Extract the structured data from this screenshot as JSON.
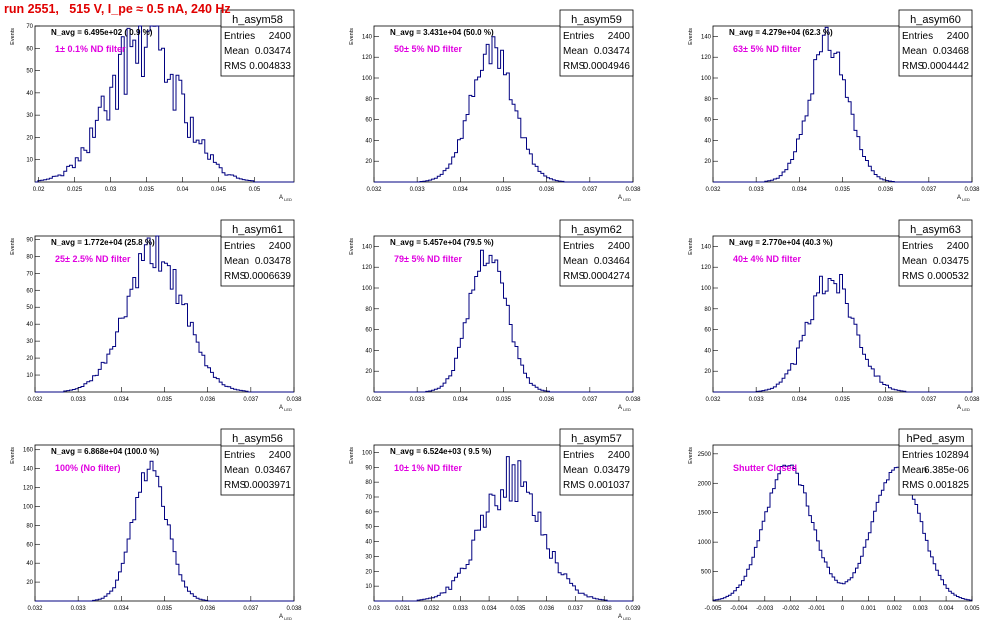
{
  "run_title": "run 2551,   515 V, I_pe ≈ 0.5 nA, 240 Hz",
  "colors": {
    "title": "#e00000",
    "hist": "#000080",
    "annot": "#e000e0"
  },
  "chart_data": [
    {
      "type": "histogram",
      "name": "h_asym58",
      "navg": "N_avg = 6.495e+02 ( 0.9 %)",
      "filter": "1± 0.1% ND filter",
      "stats": {
        "Entries": "2400",
        "Mean": "0.03474",
        "RMS": "0.004833"
      },
      "xlim": [
        0.0195,
        0.0555
      ],
      "ylim": [
        0,
        70
      ],
      "xticks": [
        "0.02",
        "0.025",
        "0.03",
        "0.035",
        "0.04",
        "0.045",
        "0.05"
      ],
      "yticks": [
        "10",
        "20",
        "30",
        "40",
        "50",
        "60",
        "70"
      ],
      "ylabel": "Events",
      "xlabel": "A_LED",
      "mu": 0.03474,
      "sigma": 0.004833,
      "peak": 63,
      "noise": 0.3,
      "seed": 58
    },
    {
      "type": "histogram",
      "name": "h_asym59",
      "navg": "N_avg = 3.431e+04 (50.0 %)",
      "filter": "50± 5% ND filter",
      "stats": {
        "Entries": "2400",
        "Mean": "0.03474",
        "RMS": "0.0004946"
      },
      "xlim": [
        0.032,
        0.038
      ],
      "ylim": [
        0,
        150
      ],
      "xticks": [
        "0.032",
        "0.033",
        "0.034",
        "0.035",
        "0.036",
        "0.037",
        "0.038"
      ],
      "yticks": [
        "20",
        "40",
        "60",
        "80",
        "100",
        "120",
        "140"
      ],
      "ylabel": "Events",
      "xlabel": "A_LED",
      "mu": 0.03474,
      "sigma": 0.0004946,
      "peak": 128,
      "noise": 0.12,
      "seed": 59
    },
    {
      "type": "histogram",
      "name": "h_asym60",
      "navg": "N_avg = 4.279e+04 (62.3 %)",
      "filter": "63± 5% ND filter",
      "stats": {
        "Entries": "2400",
        "Mean": "0.03468",
        "RMS": "0.0004442"
      },
      "xlim": [
        0.032,
        0.038
      ],
      "ylim": [
        0,
        150
      ],
      "xticks": [
        "0.032",
        "0.033",
        "0.034",
        "0.035",
        "0.036",
        "0.037",
        "0.038"
      ],
      "yticks": [
        "20",
        "40",
        "60",
        "80",
        "100",
        "120",
        "140"
      ],
      "ylabel": "Events",
      "xlabel": "A_LED",
      "mu": 0.03468,
      "sigma": 0.0004442,
      "peak": 138,
      "noise": 0.12,
      "seed": 60
    },
    {
      "type": "histogram",
      "name": "h_asym61",
      "navg": "N_avg = 1.772e+04 (25.8 %)",
      "filter": "25± 2.5% ND filter",
      "stats": {
        "Entries": "2400",
        "Mean": "0.03478",
        "RMS": "0.0006639"
      },
      "xlim": [
        0.032,
        0.038
      ],
      "ylim": [
        0,
        92
      ],
      "xticks": [
        "0.032",
        "0.033",
        "0.034",
        "0.035",
        "0.036",
        "0.037",
        "0.038"
      ],
      "yticks": [
        "10",
        "20",
        "30",
        "40",
        "50",
        "60",
        "70",
        "80",
        "90"
      ],
      "ylabel": "Events",
      "xlabel": "A_LED",
      "mu": 0.03478,
      "sigma": 0.0006639,
      "peak": 82,
      "noise": 0.15,
      "seed": 61
    },
    {
      "type": "histogram",
      "name": "h_asym62",
      "navg": "N_avg = 5.457e+04 (79.5 %)",
      "filter": "79± 5% ND filter",
      "stats": {
        "Entries": "2400",
        "Mean": "0.03464",
        "RMS": "0.0004274"
      },
      "xlim": [
        0.032,
        0.038
      ],
      "ylim": [
        0,
        150
      ],
      "xticks": [
        "0.032",
        "0.033",
        "0.034",
        "0.035",
        "0.036",
        "0.037",
        "0.038"
      ],
      "yticks": [
        "20",
        "40",
        "60",
        "80",
        "100",
        "120",
        "140"
      ],
      "ylabel": "Events",
      "xlabel": "A_LED",
      "mu": 0.03464,
      "sigma": 0.0004274,
      "peak": 136,
      "noise": 0.1,
      "seed": 62
    },
    {
      "type": "histogram",
      "name": "h_asym63",
      "navg": "N_avg = 2.770e+04 (40.3 %)",
      "filter": "40± 4% ND filter",
      "stats": {
        "Entries": "2400",
        "Mean": "0.03475",
        "RMS": "0.000532"
      },
      "xlim": [
        0.032,
        0.038
      ],
      "ylim": [
        0,
        150
      ],
      "xticks": [
        "0.032",
        "0.033",
        "0.034",
        "0.035",
        "0.036",
        "0.037",
        "0.038"
      ],
      "yticks": [
        "20",
        "40",
        "60",
        "80",
        "100",
        "120",
        "140"
      ],
      "ylabel": "Events",
      "xlabel": "A_LED",
      "mu": 0.03475,
      "sigma": 0.000532,
      "peak": 110,
      "noise": 0.14,
      "seed": 63
    },
    {
      "type": "histogram",
      "name": "h_asym56",
      "navg": "N_avg = 6.868e+04 (100.0 %)",
      "filter": "100% (No filter)",
      "stats": {
        "Entries": "2400",
        "Mean": "0.03467",
        "RMS": "0.0003971"
      },
      "xlim": [
        0.032,
        0.038
      ],
      "ylim": [
        0,
        165
      ],
      "xticks": [
        "0.032",
        "0.033",
        "0.034",
        "0.035",
        "0.036",
        "0.037",
        "0.038"
      ],
      "yticks": [
        "20",
        "40",
        "60",
        "80",
        "100",
        "120",
        "140",
        "160"
      ],
      "ylabel": "Events",
      "xlabel": "A_LED",
      "mu": 0.03467,
      "sigma": 0.0003971,
      "peak": 142,
      "noise": 0.1,
      "seed": 56
    },
    {
      "type": "histogram",
      "name": "h_asym57",
      "navg": "N_avg = 6.524e+03 ( 9.5 %)",
      "filter": "10± 1% ND filter",
      "stats": {
        "Entries": "2400",
        "Mean": "0.03479",
        "RMS": "0.001037"
      },
      "xlim": [
        0.03,
        0.039
      ],
      "ylim": [
        0,
        105
      ],
      "xticks": [
        "0.03",
        "0.031",
        "0.032",
        "0.033",
        "0.034",
        "0.035",
        "0.036",
        "0.037",
        "0.038",
        "0.039"
      ],
      "yticks": [
        "10",
        "20",
        "30",
        "40",
        "50",
        "60",
        "70",
        "80",
        "90",
        "100"
      ],
      "ylabel": "Events",
      "xlabel": "A_LED",
      "mu": 0.03479,
      "sigma": 0.001037,
      "peak": 82,
      "noise": 0.2,
      "seed": 57
    },
    {
      "type": "histogram",
      "name": "hPed_asym",
      "navg": "",
      "filter": "Shutter Closed",
      "stats": {
        "Entries": "102894",
        "Mean": "6.385e-06",
        "RMS": "0.001825"
      },
      "xlim": [
        -0.005,
        0.005
      ],
      "ylim": [
        0,
        2650
      ],
      "xticks": [
        "-0.005",
        "-0.004",
        "-0.003",
        "-0.002",
        "-0.001",
        "0",
        "0.001",
        "0.002",
        "0.003",
        "0.004",
        "0.005"
      ],
      "yticks": [
        "500",
        "1000",
        "1500",
        "2000",
        "2500"
      ],
      "ylabel": "Events",
      "xlabel": "",
      "bimodal": true,
      "peak": 2400,
      "noise": 0.04,
      "seed": 99
    }
  ]
}
